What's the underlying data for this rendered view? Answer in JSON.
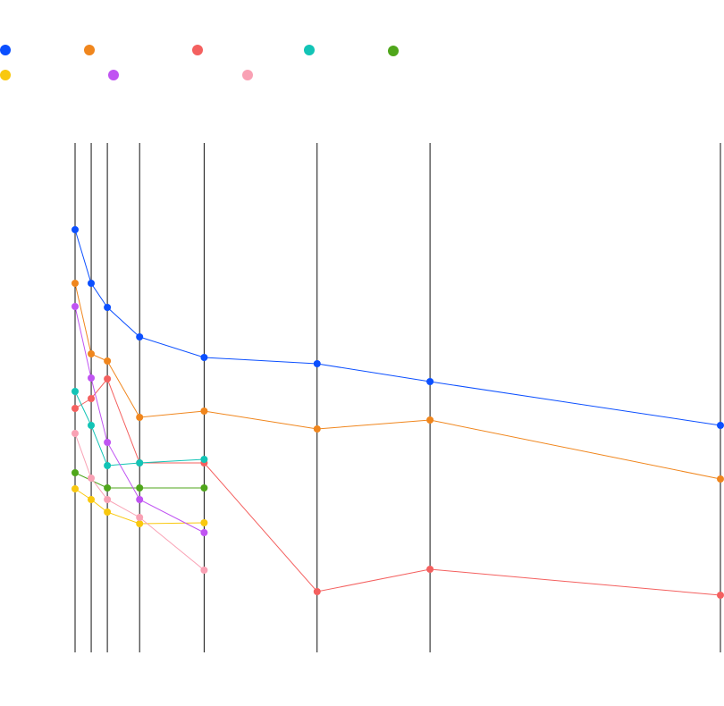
{
  "chart_data": {
    "type": "line",
    "title": "",
    "xlabel": "",
    "ylabel": "",
    "grid": false,
    "legend_position": "top-left",
    "axes": [
      {
        "value": 0
      },
      {
        "value": 1
      },
      {
        "value": 2
      },
      {
        "value": 4
      },
      {
        "value": 8
      },
      {
        "value": 15
      },
      {
        "value": 22
      },
      {
        "value": 40
      }
    ],
    "ylim": [
      0,
      570
    ],
    "series": [
      {
        "color": "#0b4fff",
        "values": [
          473,
          413,
          386,
          353,
          330,
          323,
          303,
          254
        ]
      },
      {
        "color": "#f0861d",
        "values": [
          413,
          334,
          326,
          263,
          270,
          250,
          260,
          194
        ]
      },
      {
        "color": "#f4605f",
        "values": [
          273,
          284,
          306,
          212,
          212,
          68,
          93,
          64
        ]
      },
      {
        "color": "#12c4b6",
        "values": [
          292,
          254,
          209,
          212,
          216,
          null,
          null,
          null
        ]
      },
      {
        "color": "#4fa61b",
        "values": [
          201,
          null,
          184,
          184,
          184,
          null,
          null,
          null
        ]
      },
      {
        "color": "#f9c80e",
        "values": [
          183,
          171,
          157,
          144,
          145,
          null,
          null,
          null
        ]
      },
      {
        "color": "#c054f2",
        "values": [
          387,
          307,
          235,
          171,
          134,
          null,
          null,
          null
        ]
      },
      {
        "color": "#f9a1b4",
        "values": [
          245,
          195,
          171,
          151,
          92,
          null,
          null,
          null
        ]
      }
    ]
  }
}
